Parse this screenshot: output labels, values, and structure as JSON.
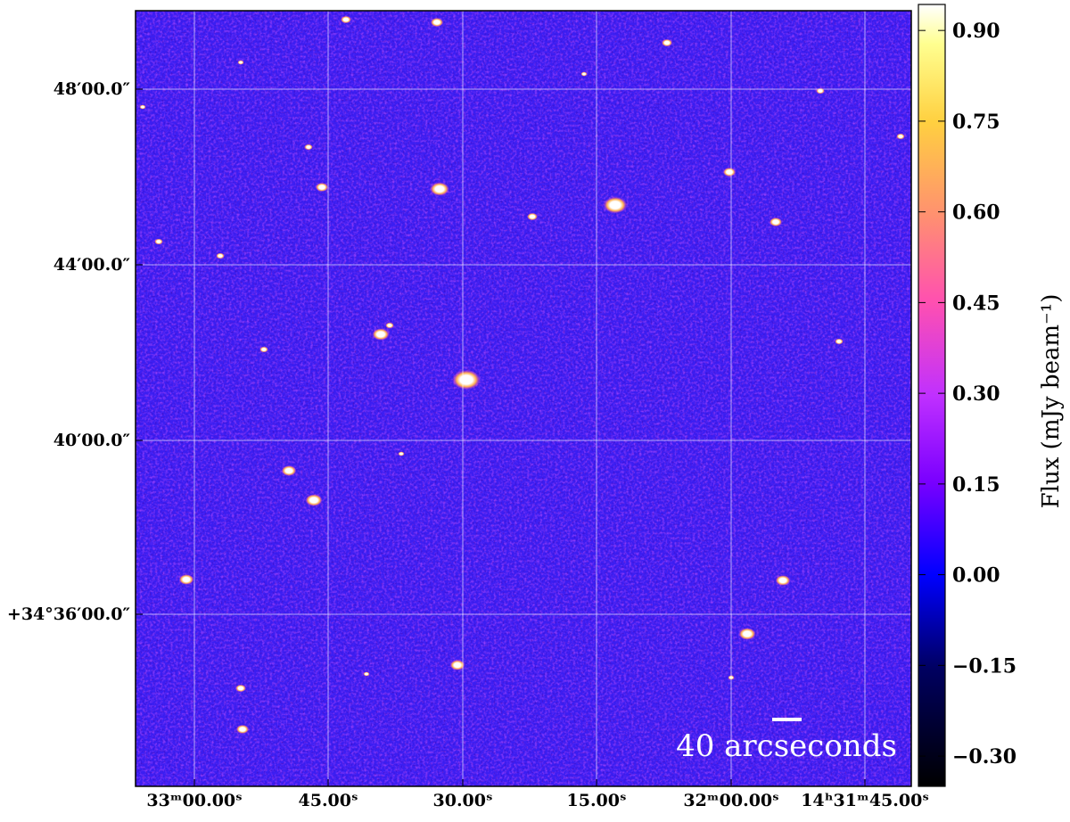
{
  "chart_data": {
    "type": "image",
    "x_tick_labels": [
      "33ᵐ00.00ˢ",
      "45.00ˢ",
      "30.00ˢ",
      "15.00ˢ",
      "32ᵐ00.00ˢ",
      "14ʰ31ᵐ45.00ˢ"
    ],
    "y_tick_labels": [
      "48′00.0″",
      "44′00.0″",
      "40′00.0″",
      "+34°36′00.0″"
    ],
    "colorbar_label": "Flux (mJy beam⁻¹)",
    "clim": [
      -0.35,
      0.943
    ],
    "colorbar_ticks": [
      {
        "value": 0.9,
        "label": "0.90"
      },
      {
        "value": 0.75,
        "label": "0.75"
      },
      {
        "value": 0.6,
        "label": "0.60"
      },
      {
        "value": 0.45,
        "label": "0.45"
      },
      {
        "value": 0.3,
        "label": "0.30"
      },
      {
        "value": 0.15,
        "label": "0.15"
      },
      {
        "value": 0,
        "label": "0.00"
      },
      {
        "value": -0.15,
        "label": "−0.15"
      },
      {
        "value": -0.3,
        "label": "−0.30"
      }
    ],
    "scale_bar_label": "40 arcseconds",
    "grid": true
  }
}
